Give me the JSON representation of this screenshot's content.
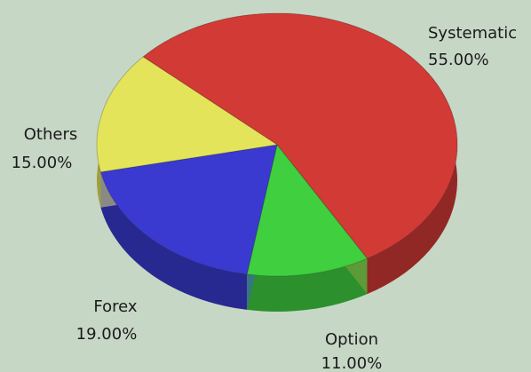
{
  "chart_data": {
    "type": "pie",
    "categories": [
      "Systematic",
      "Option",
      "Forex",
      "Others"
    ],
    "values": [
      55,
      11,
      19,
      15
    ],
    "value_labels": [
      "55.00%",
      "11.00%",
      "19.00%",
      "15.00%"
    ],
    "colors": [
      "#d23a36",
      "#3fcf3f",
      "#3a3ad0",
      "#e4e45a"
    ]
  }
}
